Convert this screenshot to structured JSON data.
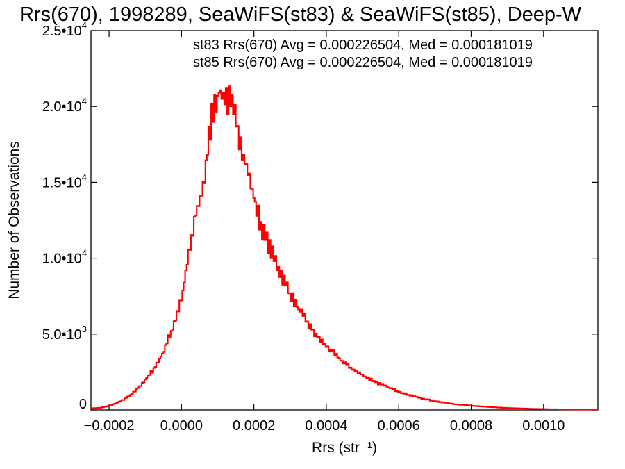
{
  "chart_data": {
    "type": "line",
    "title": "Rrs(670), 1998289, SeaWiFS(st83) & SeaWiFS(st85), Deep-W",
    "xlabel": "Rrs (str⁻¹)",
    "ylabel": "Number of Observations",
    "xlim": [
      -0.00025,
      0.00115
    ],
    "ylim": [
      0,
      25000
    ],
    "x_ticks": [
      {
        "value": -0.0002,
        "label": "−0.0002"
      },
      {
        "value": 0.0,
        "label": "0.0000"
      },
      {
        "value": 0.0002,
        "label": "0.0002"
      },
      {
        "value": 0.0004,
        "label": "0.0004"
      },
      {
        "value": 0.0006,
        "label": "0.0006"
      },
      {
        "value": 0.0008,
        "label": "0.0008"
      },
      {
        "value": 0.001,
        "label": "0.0010"
      }
    ],
    "y_ticks": [
      {
        "value": 0,
        "mant": "0",
        "exp": ""
      },
      {
        "value": 5000,
        "mant": "5.0•10",
        "exp": "3"
      },
      {
        "value": 10000,
        "mant": "1.0•10",
        "exp": "4"
      },
      {
        "value": 15000,
        "mant": "1.5•10",
        "exp": "4"
      },
      {
        "value": 20000,
        "mant": "2.0•10",
        "exp": "4"
      },
      {
        "value": 25000,
        "mant": "2.5•10",
        "exp": "4"
      }
    ],
    "annotations": [
      {
        "text": "st83 Rrs(670) Avg = 0.000226504, Med = 0.000181019",
        "color": "#000000"
      },
      {
        "text": "st85 Rrs(670) Avg = 0.000226504, Med = 0.000181019",
        "color": "#ff0000"
      }
    ],
    "series": [
      {
        "name": "st85",
        "color": "#ff0000",
        "style": "step",
        "x": [
          -0.00025,
          -0.000222,
          -0.000194,
          -0.000166,
          -0.000138,
          -0.00011,
          -8.2e-05,
          -5.4e-05,
          -2.6e-05,
          2e-06,
          2e-05,
          4e-05,
          6e-05,
          7e-05,
          8e-05,
          9e-05,
          0.0001,
          0.000108,
          0.000116,
          0.000124,
          0.000132,
          0.00014,
          0.000148,
          0.000156,
          0.000164,
          0.000176,
          0.00019,
          0.000205,
          0.00022,
          0.00024,
          0.00026,
          0.00028,
          0.0003,
          0.00032,
          0.00034,
          0.00036,
          0.00038,
          0.0004,
          0.00043,
          0.00046,
          0.0005,
          0.00054,
          0.00058,
          0.00062,
          0.00066,
          0.0007,
          0.00075,
          0.0008,
          0.00085,
          0.0009,
          0.00096,
          0.00102,
          0.00108,
          0.00115
        ],
        "values": [
          100,
          150,
          300,
          600,
          1000,
          1700,
          2500,
          3600,
          5300,
          7500,
          10200,
          12800,
          14800,
          16500,
          18700,
          20300,
          20700,
          20900,
          20800,
          20600,
          20300,
          19800,
          19200,
          18500,
          17800,
          16500,
          15000,
          13500,
          12100,
          10900,
          9800,
          8700,
          7700,
          6800,
          6000,
          5300,
          4700,
          4200,
          3500,
          2900,
          2300,
          1800,
          1400,
          1050,
          780,
          580,
          400,
          280,
          190,
          130,
          80,
          50,
          30,
          20
        ]
      }
    ]
  }
}
